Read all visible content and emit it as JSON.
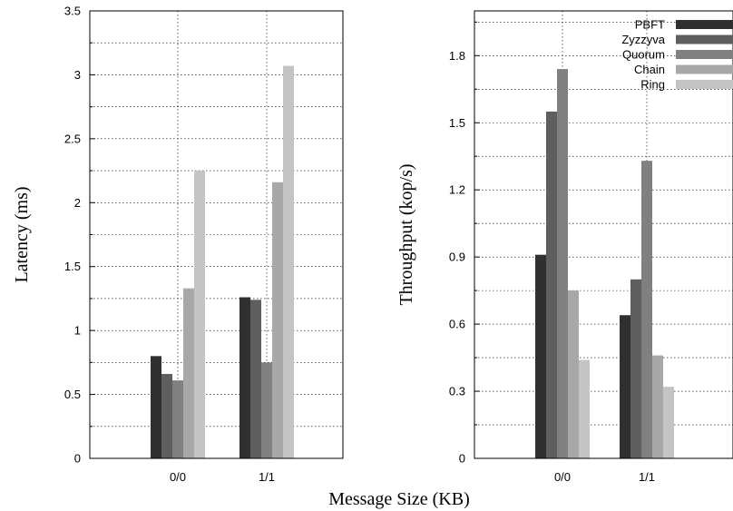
{
  "xlabel": "Message Size (KB)",
  "chart_data": [
    {
      "type": "bar",
      "categories": [
        "0/0",
        "1/1"
      ],
      "ylabel": "Latency (ms)",
      "ylim": [
        0,
        3.5
      ],
      "yticks": [
        "0",
        "0.5",
        "1",
        "1.5",
        "2",
        "2.5",
        "3",
        "3.5"
      ],
      "ytick_values": [
        0,
        0.5,
        1,
        1.5,
        2,
        2.5,
        3,
        3.5
      ],
      "grid": true,
      "series": [
        {
          "name": "PBFT",
          "color": "#303030",
          "values": [
            0.8,
            1.26
          ]
        },
        {
          "name": "Zyzzyva",
          "color": "#5e5e5e",
          "values": [
            0.66,
            1.24
          ]
        },
        {
          "name": "Quorum",
          "color": "#808080",
          "values": [
            0.61,
            0.75
          ]
        },
        {
          "name": "Chain",
          "color": "#a8a8a8",
          "values": [
            1.33,
            2.16
          ]
        },
        {
          "name": "Ring",
          "color": "#c4c4c4",
          "values": [
            2.25,
            3.07
          ]
        }
      ]
    },
    {
      "type": "bar",
      "categories": [
        "0/0",
        "1/1"
      ],
      "ylabel": "Throughput (kop/s)",
      "ylim": [
        0,
        2.0
      ],
      "yticks": [
        "0",
        "0.3",
        "0.6",
        "0.9",
        "1.2",
        "1.5",
        "1.8"
      ],
      "ytick_values": [
        0,
        0.3,
        0.6,
        0.9,
        1.2,
        1.5,
        1.8
      ],
      "grid": true,
      "legend": "top-right",
      "series": [
        {
          "name": "PBFT",
          "color": "#303030",
          "values": [
            0.91,
            0.64
          ]
        },
        {
          "name": "Zyzzyva",
          "color": "#5e5e5e",
          "values": [
            1.55,
            0.8
          ]
        },
        {
          "name": "Quorum",
          "color": "#808080",
          "values": [
            1.74,
            1.33
          ]
        },
        {
          "name": "Chain",
          "color": "#a8a8a8",
          "values": [
            0.75,
            0.46
          ]
        },
        {
          "name": "Ring",
          "color": "#c4c4c4",
          "values": [
            0.44,
            0.32
          ]
        }
      ]
    }
  ]
}
